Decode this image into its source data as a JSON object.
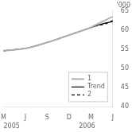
{
  "chart_data": {
    "type": "line",
    "title": "'000",
    "annotations": [
      "2005",
      "2006"
    ],
    "x": [
      0,
      0.35714285714285715,
      0.7142857142857143,
      1.0714285714285714,
      1.4285714285714286,
      1.7857142857142858,
      2.142857142857143,
      2.5,
      2.857142857142857,
      3.2142857142857144,
      3.5714285714285716,
      3.928571428571429,
      4.285714285714286,
      4.642857142857143,
      5
    ],
    "xlim": [
      0,
      5
    ],
    "xticks": [
      {
        "value": 0,
        "label": "M"
      },
      {
        "value": 1,
        "label": "J"
      },
      {
        "value": 2,
        "label": "S"
      },
      {
        "value": 3,
        "label": "D"
      },
      {
        "value": 4,
        "label": "M"
      },
      {
        "value": 5,
        "label": "J"
      }
    ],
    "ylim": [
      40,
      65
    ],
    "yticks": [
      40,
      45,
      50,
      55,
      60,
      65
    ],
    "grid": false,
    "legend": "lower right",
    "series": [
      {
        "name": "1",
        "color": "#b0b0b0",
        "line_style": "solid",
        "marker": "none",
        "values": [
          54.6,
          54.8,
          55.0,
          55.3,
          55.8,
          56.4,
          57.0,
          57.7,
          58.4,
          59.1,
          59.8,
          60.5,
          61.5,
          62.5,
          63.5
        ]
      },
      {
        "name": "Trend",
        "color": "#000000",
        "line_style": "solid",
        "marker": "none",
        "values": [
          54.6,
          54.8,
          55.0,
          55.3,
          55.8,
          56.4,
          57.0,
          57.7,
          58.4,
          59.1,
          59.8,
          60.5,
          61.2,
          61.8,
          62.2
        ]
      },
      {
        "name": "2",
        "color": "#000000",
        "line_style": "dashed",
        "marker": "none",
        "values": [
          54.6,
          54.8,
          55.0,
          55.3,
          55.8,
          56.4,
          57.0,
          57.7,
          58.4,
          59.1,
          59.8,
          60.5,
          61.2,
          61.5,
          62.5
        ]
      }
    ]
  }
}
